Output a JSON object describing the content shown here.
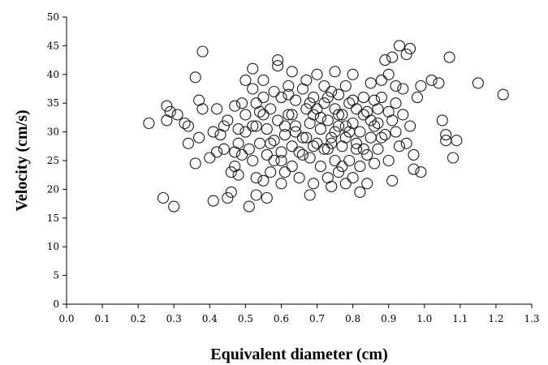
{
  "chart_data": {
    "type": "scatter",
    "title": "",
    "xlabel": "Equivalent diameter (cm)",
    "ylabel": "Velocity (cm/s)",
    "xlim": [
      0.0,
      1.3
    ],
    "ylim": [
      0,
      50
    ],
    "xticks": [
      "0.0",
      "0.1",
      "0.2",
      "0.3",
      "0.4",
      "0.5",
      "0.6",
      "0.7",
      "0.8",
      "0.9",
      "1.0",
      "1.1",
      "1.2",
      "1.3"
    ],
    "yticks": [
      "0",
      "5",
      "10",
      "15",
      "20",
      "25",
      "30",
      "35",
      "40",
      "45",
      "50"
    ],
    "grid": false,
    "legend": "none",
    "marker": "open-circle",
    "series": [
      {
        "points": [
          [
            0.23,
            31.5
          ],
          [
            0.27,
            18.5
          ],
          [
            0.28,
            32
          ],
          [
            0.28,
            34.5
          ],
          [
            0.29,
            33.5
          ],
          [
            0.3,
            17
          ],
          [
            0.31,
            33
          ],
          [
            0.33,
            31.5
          ],
          [
            0.34,
            28
          ],
          [
            0.34,
            31
          ],
          [
            0.36,
            24.5
          ],
          [
            0.36,
            39.5
          ],
          [
            0.37,
            29
          ],
          [
            0.37,
            35.5
          ],
          [
            0.38,
            34
          ],
          [
            0.38,
            44
          ],
          [
            0.4,
            25.5
          ],
          [
            0.41,
            30
          ],
          [
            0.41,
            18
          ],
          [
            0.42,
            34
          ],
          [
            0.42,
            26.5
          ],
          [
            0.43,
            29.5
          ],
          [
            0.44,
            31
          ],
          [
            0.44,
            27
          ],
          [
            0.45,
            32
          ],
          [
            0.45,
            18.5
          ],
          [
            0.46,
            19.5
          ],
          [
            0.46,
            23
          ],
          [
            0.47,
            24
          ],
          [
            0.47,
            26.5
          ],
          [
            0.47,
            34.5
          ],
          [
            0.48,
            30.5
          ],
          [
            0.48,
            22.5
          ],
          [
            0.49,
            26
          ],
          [
            0.49,
            35
          ],
          [
            0.5,
            39
          ],
          [
            0.5,
            30
          ],
          [
            0.5,
            33
          ],
          [
            0.51,
            27
          ],
          [
            0.51,
            17
          ],
          [
            0.52,
            25
          ],
          [
            0.52,
            37.5
          ],
          [
            0.52,
            41
          ],
          [
            0.53,
            19
          ],
          [
            0.53,
            22
          ],
          [
            0.53,
            31
          ],
          [
            0.54,
            28
          ],
          [
            0.54,
            33.5
          ],
          [
            0.55,
            21.5
          ],
          [
            0.55,
            36
          ],
          [
            0.55,
            39
          ],
          [
            0.56,
            18.5
          ],
          [
            0.56,
            26
          ],
          [
            0.56,
            30.5
          ],
          [
            0.57,
            23
          ],
          [
            0.57,
            34
          ],
          [
            0.58,
            37
          ],
          [
            0.58,
            28.5
          ],
          [
            0.59,
            41.5
          ],
          [
            0.59,
            42.5
          ],
          [
            0.59,
            32
          ],
          [
            0.6,
            21
          ],
          [
            0.6,
            25
          ],
          [
            0.6,
            36
          ],
          [
            0.61,
            23
          ],
          [
            0.61,
            29.5
          ],
          [
            0.62,
            33
          ],
          [
            0.62,
            38
          ],
          [
            0.63,
            24
          ],
          [
            0.63,
            27.5
          ],
          [
            0.63,
            40.5
          ],
          [
            0.64,
            31
          ],
          [
            0.64,
            35.5
          ],
          [
            0.65,
            22
          ],
          [
            0.65,
            26.5
          ],
          [
            0.66,
            29
          ],
          [
            0.66,
            37.5
          ],
          [
            0.67,
            34
          ],
          [
            0.67,
            39
          ],
          [
            0.68,
            19
          ],
          [
            0.68,
            25.5
          ],
          [
            0.68,
            31.5
          ],
          [
            0.69,
            21
          ],
          [
            0.69,
            33
          ],
          [
            0.69,
            36
          ],
          [
            0.7,
            28
          ],
          [
            0.7,
            40
          ],
          [
            0.71,
            24
          ],
          [
            0.71,
            30.5
          ],
          [
            0.72,
            35
          ],
          [
            0.72,
            38
          ],
          [
            0.73,
            22
          ],
          [
            0.73,
            27
          ],
          [
            0.73,
            32
          ],
          [
            0.74,
            20.5
          ],
          [
            0.74,
            29
          ],
          [
            0.74,
            37
          ],
          [
            0.75,
            25
          ],
          [
            0.75,
            34
          ],
          [
            0.75,
            40.5
          ],
          [
            0.76,
            23
          ],
          [
            0.76,
            31
          ],
          [
            0.76,
            36.5
          ],
          [
            0.77,
            27.5
          ],
          [
            0.77,
            33
          ],
          [
            0.78,
            21
          ],
          [
            0.78,
            29
          ],
          [
            0.78,
            38
          ],
          [
            0.79,
            25
          ],
          [
            0.79,
            35
          ],
          [
            0.8,
            22
          ],
          [
            0.8,
            31.5
          ],
          [
            0.8,
            40
          ],
          [
            0.81,
            27
          ],
          [
            0.81,
            34
          ],
          [
            0.82,
            19.5
          ],
          [
            0.82,
            24
          ],
          [
            0.82,
            30
          ],
          [
            0.83,
            36
          ],
          [
            0.83,
            33
          ],
          [
            0.84,
            26
          ],
          [
            0.84,
            21
          ],
          [
            0.85,
            29
          ],
          [
            0.85,
            38.5
          ],
          [
            0.86,
            31
          ],
          [
            0.86,
            24.5
          ],
          [
            0.87,
            34
          ],
          [
            0.87,
            27
          ],
          [
            0.88,
            39
          ],
          [
            0.88,
            36
          ],
          [
            0.89,
            42.5
          ],
          [
            0.89,
            29.5
          ],
          [
            0.9,
            25
          ],
          [
            0.9,
            40
          ],
          [
            0.91,
            32
          ],
          [
            0.91,
            21.5
          ],
          [
            0.91,
            43
          ],
          [
            0.92,
            35
          ],
          [
            0.92,
            30
          ],
          [
            0.93,
            45
          ],
          [
            0.94,
            37.5
          ],
          [
            0.94,
            33
          ],
          [
            0.95,
            28
          ],
          [
            0.95,
            43.5
          ],
          [
            0.96,
            44.5
          ],
          [
            0.96,
            31
          ],
          [
            0.97,
            23.5
          ],
          [
            0.97,
            26
          ],
          [
            0.98,
            36
          ],
          [
            0.99,
            38
          ],
          [
            0.99,
            23
          ],
          [
            1.02,
            39
          ],
          [
            1.04,
            38.5
          ],
          [
            1.05,
            32
          ],
          [
            1.06,
            29.5
          ],
          [
            1.06,
            28.5
          ],
          [
            1.07,
            43
          ],
          [
            1.08,
            25.5
          ],
          [
            1.09,
            28.5
          ],
          [
            1.15,
            38.5
          ],
          [
            1.22,
            36.5
          ],
          [
            0.58,
            25
          ],
          [
            0.61,
            31
          ],
          [
            0.66,
            26
          ],
          [
            0.7,
            34
          ],
          [
            0.72,
            27
          ],
          [
            0.76,
            33
          ],
          [
            0.79,
            30
          ],
          [
            0.84,
            33.5
          ],
          [
            0.88,
            29
          ],
          [
            0.55,
            33
          ],
          [
            0.6,
            26.5
          ],
          [
            0.64,
            30
          ],
          [
            0.68,
            35
          ],
          [
            0.71,
            32.5
          ],
          [
            0.74,
            28
          ],
          [
            0.77,
            24
          ],
          [
            0.81,
            28
          ],
          [
            0.86,
            35.5
          ],
          [
            0.9,
            33.5
          ],
          [
            0.52,
            31
          ],
          [
            0.57,
            28
          ],
          [
            0.63,
            33
          ],
          [
            0.67,
            29
          ],
          [
            0.73,
            36
          ],
          [
            0.78,
            31
          ],
          [
            0.83,
            27
          ],
          [
            0.87,
            31.5
          ],
          [
            0.93,
            27.5
          ],
          [
            0.48,
            28
          ],
          [
            0.53,
            35
          ],
          [
            0.62,
            36.5
          ],
          [
            0.69,
            27.5
          ],
          [
            0.75,
            30
          ],
          [
            0.8,
            35.5
          ],
          [
            0.85,
            32
          ],
          [
            0.92,
            38
          ]
        ]
      }
    ]
  }
}
